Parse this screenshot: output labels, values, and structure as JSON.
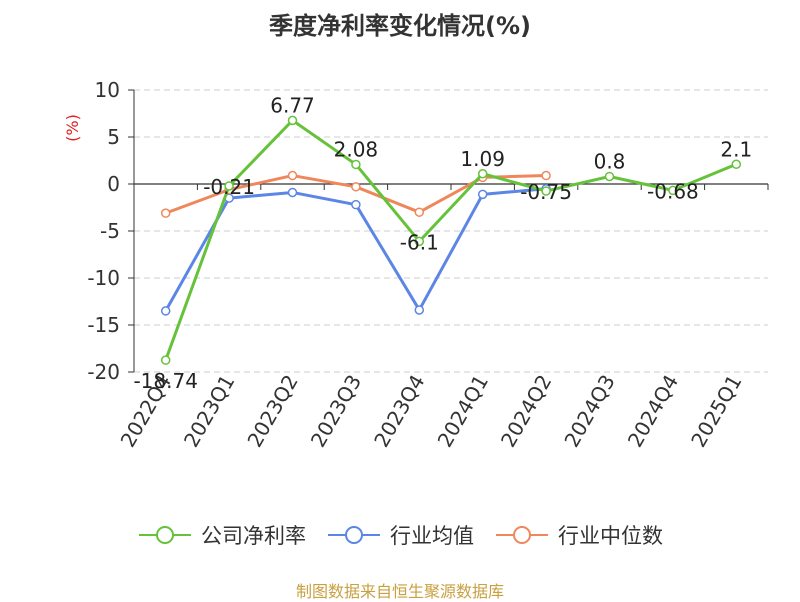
{
  "chart_data": {
    "type": "line",
    "title": "季度净利率变化情况(%)",
    "ylabel": "(%)",
    "ylim": [
      -20,
      10
    ],
    "yticks": [
      10,
      5,
      0,
      -5,
      -10,
      -15,
      -20
    ],
    "grid": true,
    "legend_position": "bottom",
    "categories": [
      "2022Q4",
      "2023Q1",
      "2023Q2",
      "2023Q3",
      "2023Q4",
      "2024Q1",
      "2024Q2",
      "2024Q3",
      "2024Q4",
      "2025Q1"
    ],
    "series": [
      {
        "name": "公司净利率",
        "color": "#66c23a",
        "values": [
          -18.74,
          -0.21,
          6.77,
          2.08,
          -6.1,
          1.09,
          -0.75,
          0.8,
          -0.68,
          2.1
        ],
        "labels": [
          "-18.74",
          "-0.21",
          "6.77",
          "2.08",
          "-6.1",
          "1.09",
          "-0.75",
          "0.8",
          "-0.68",
          "2.1"
        ]
      },
      {
        "name": "行业均值",
        "color": "#5b86e5",
        "values": [
          -13.5,
          -1.5,
          -0.9,
          -2.2,
          -13.4,
          -1.1,
          -0.5,
          null,
          null,
          null
        ]
      },
      {
        "name": "行业中位数",
        "color": "#f0875a",
        "values": [
          -3.1,
          -0.6,
          0.9,
          -0.3,
          -3.0,
          0.7,
          0.9,
          null,
          null,
          null
        ]
      }
    ]
  },
  "source": "制图数据来自恒生聚源数据库"
}
